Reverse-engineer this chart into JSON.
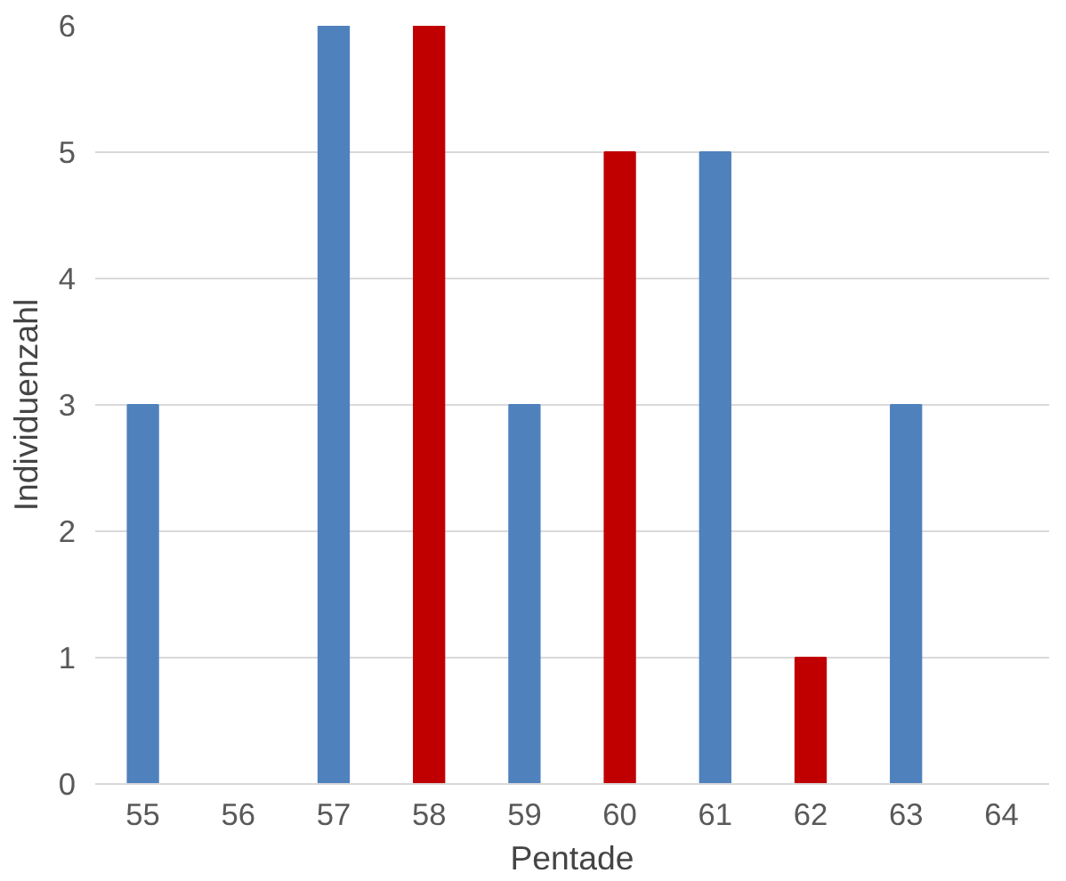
{
  "chart_data": {
    "type": "bar",
    "xlabel": "Pentade",
    "ylabel": "Individuenzahl",
    "categories": [
      "55",
      "56",
      "57",
      "58",
      "59",
      "60",
      "61",
      "62",
      "63",
      "64"
    ],
    "values": [
      3,
      0,
      6,
      6,
      3,
      5,
      5,
      1,
      3,
      0
    ],
    "colors": [
      "#4f81bd",
      "#4f81bd",
      "#4f81bd",
      "#c00000",
      "#4f81bd",
      "#c00000",
      "#4f81bd",
      "#c00000",
      "#4f81bd",
      "#4f81bd"
    ],
    "ylim": [
      0,
      6
    ],
    "yticks": [
      0,
      1,
      2,
      3,
      4,
      5,
      6
    ],
    "grid": "y"
  }
}
